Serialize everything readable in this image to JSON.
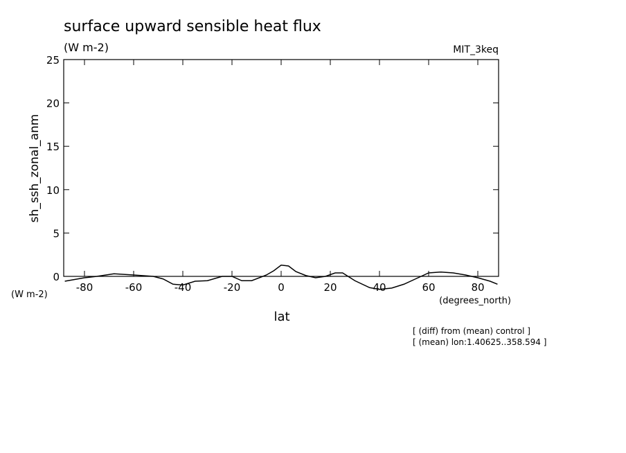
{
  "chart_data": {
    "type": "line",
    "title": "surface upward sensible heat flux",
    "subtitle": "(W m-2)",
    "dataset": "MIT_3keq",
    "ylabel": "sh_ssh_zonal_anm",
    "yunits": "(W m-2)",
    "xlabel": "lat",
    "xunits": "(degrees_north)",
    "notes": [
      "[ (diff) from (mean) control ]",
      "[ (mean) lon:1.40625..358.594 ]"
    ],
    "xlim": [
      -88.45,
      88.45
    ],
    "ylim": [
      0,
      25
    ],
    "xticks": [
      -80,
      -60,
      -40,
      -20,
      0,
      20,
      40,
      60,
      80
    ],
    "yticks": [
      0,
      5,
      10,
      15,
      20,
      25
    ],
    "color": "#000000",
    "x": [
      -88,
      -80,
      -75,
      -68,
      -60,
      -52,
      -48,
      -44,
      -40,
      -35,
      -30,
      -24,
      -20,
      -16,
      -12,
      -6,
      -3,
      0,
      3,
      6,
      10,
      14,
      18,
      22,
      25,
      30,
      36,
      40,
      45,
      50,
      55,
      60,
      65,
      70,
      75,
      80,
      85,
      88
    ],
    "values": [
      -0.56,
      -0.16,
      0,
      0.3,
      0.16,
      0,
      -0.3,
      -0.9,
      -1.0,
      -0.56,
      -0.5,
      0,
      0,
      -0.5,
      -0.5,
      0.16,
      0.65,
      1.3,
      1.2,
      0.55,
      0.1,
      -0.16,
      0,
      0.4,
      0.4,
      -0.5,
      -1.3,
      -1.5,
      -1.35,
      -0.9,
      -0.25,
      0.4,
      0.5,
      0.4,
      0.16,
      -0.16,
      -0.56,
      -0.9
    ]
  }
}
